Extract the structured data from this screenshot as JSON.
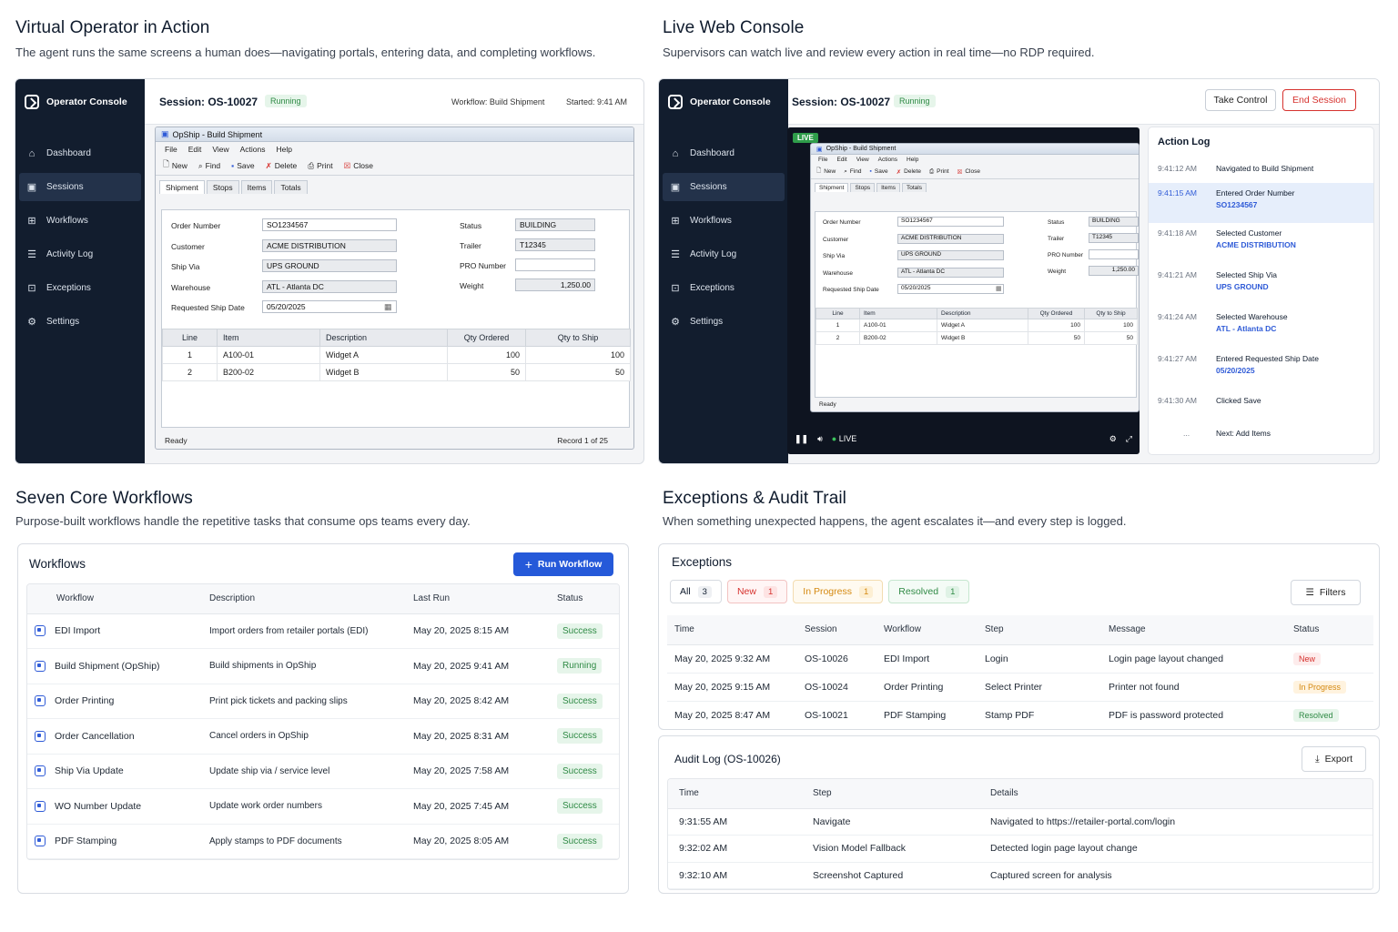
{
  "sections": {
    "operator": {
      "title": "Virtual Operator in Action",
      "subtitle": "The agent runs the same screens a human does—navigating portals, entering data, and completing workflows."
    },
    "console": {
      "title": "Live Web Console",
      "subtitle": "Supervisors can watch live and review every action in real time—no RDP required."
    },
    "workflows": {
      "title": "Seven Core Workflows",
      "subtitle": "Purpose-built workflows handle the repetitive tasks that consume ops teams every day."
    },
    "exceptions": {
      "title": "Exceptions & Audit Trail",
      "subtitle": "When something unexpected happens, the agent escalates it—and every step is logged."
    }
  },
  "sidebar": {
    "brand": "Operator Console",
    "items": [
      {
        "label": "Dashboard",
        "icon": "home-icon"
      },
      {
        "label": "Sessions",
        "icon": "session-icon"
      },
      {
        "label": "Workflows",
        "icon": "workflow-icon"
      },
      {
        "label": "Activity Log",
        "icon": "list-icon"
      },
      {
        "label": "Exceptions",
        "icon": "exception-icon"
      },
      {
        "label": "Settings",
        "icon": "gear-icon"
      }
    ]
  },
  "session": {
    "title": "Session: OS-10027",
    "status": "Running",
    "workflow": "Workflow: Build Shipment",
    "started": "Started: 9:41 AM",
    "take_control": "Take Control",
    "end_session": "End Session"
  },
  "opship": {
    "title": "OpShip - Build Shipment",
    "menu": [
      "File",
      "Edit",
      "View",
      "Actions",
      "Help"
    ],
    "tools": [
      "New",
      "Find",
      "Save",
      "Delete",
      "Print",
      "Close"
    ],
    "tabs": [
      "Shipment",
      "Stops",
      "Items",
      "Totals"
    ],
    "labels": {
      "order_number": "Order Number",
      "customer": "Customer",
      "ship_via": "Ship Via",
      "warehouse": "Warehouse",
      "requested": "Requested Ship Date",
      "status": "Status",
      "trailer": "Trailer",
      "pro": "PRO Number",
      "weight": "Weight"
    },
    "values": {
      "order_number": "SO1234567",
      "customer": "ACME DISTRIBUTION",
      "ship_via": "UPS GROUND",
      "warehouse": "ATL - Atlanta DC",
      "requested": "05/20/2025",
      "status": "BUILDING",
      "trailer": "T12345",
      "pro": "",
      "weight": "1,250.00"
    },
    "grid_headers": [
      "Line",
      "Item",
      "Description",
      "Qty Ordered",
      "Qty to Ship"
    ],
    "grid_rows": [
      [
        "1",
        "A100-01",
        "Widget A",
        "100",
        "100"
      ],
      [
        "2",
        "B200-02",
        "Widget B",
        "50",
        "50"
      ]
    ],
    "status_bar": "Ready",
    "record": "Record 1 of 25"
  },
  "live": {
    "badge": "LIVE",
    "player_label": "LIVE"
  },
  "action_log": {
    "title": "Action Log",
    "entries": [
      {
        "time": "9:41:12 AM",
        "action": "Navigated to Build Shipment",
        "detail": ""
      },
      {
        "time": "9:41:15 AM",
        "action": "Entered Order Number",
        "detail": "SO1234567"
      },
      {
        "time": "9:41:18 AM",
        "action": "Selected Customer",
        "detail": "ACME DISTRIBUTION"
      },
      {
        "time": "9:41:21 AM",
        "action": "Selected Ship Via",
        "detail": "UPS GROUND"
      },
      {
        "time": "9:41:24 AM",
        "action": "Selected Warehouse",
        "detail": "ATL - Atlanta DC"
      },
      {
        "time": "9:41:27 AM",
        "action": "Entered Requested Ship Date",
        "detail": "05/20/2025"
      },
      {
        "time": "9:41:30 AM",
        "action": "Clicked Save",
        "detail": ""
      },
      {
        "time": "...",
        "action": "Next: Add Items",
        "detail": ""
      }
    ]
  },
  "workflows_card": {
    "title": "Workflows",
    "run_button": "Run Workflow",
    "headers": [
      "Workflow",
      "Description",
      "Last Run",
      "Status"
    ],
    "rows": [
      {
        "name": "EDI Import",
        "desc": "Import orders from retailer portals (EDI)",
        "last": "May 20, 2025 8:15 AM",
        "status": "Success"
      },
      {
        "name": "Build Shipment (OpShip)",
        "desc": "Build shipments in OpShip",
        "last": "May 20, 2025 9:41 AM",
        "status": "Running"
      },
      {
        "name": "Order Printing",
        "desc": "Print pick tickets and packing slips",
        "last": "May 20, 2025 8:42 AM",
        "status": "Success"
      },
      {
        "name": "Order Cancellation",
        "desc": "Cancel orders in OpShip",
        "last": "May 20, 2025 8:31 AM",
        "status": "Success"
      },
      {
        "name": "Ship Via Update",
        "desc": "Update ship via / service level",
        "last": "May 20, 2025 7:58 AM",
        "status": "Success"
      },
      {
        "name": "WO Number Update",
        "desc": "Update work order numbers",
        "last": "May 20, 2025 7:45 AM",
        "status": "Success"
      },
      {
        "name": "PDF Stamping",
        "desc": "Apply stamps to PDF documents",
        "last": "May 20, 2025 8:05 AM",
        "status": "Success"
      }
    ]
  },
  "exceptions_card": {
    "title": "Exceptions",
    "filters": [
      {
        "label": "All",
        "count": "3"
      },
      {
        "label": "New",
        "count": "1"
      },
      {
        "label": "In Progress",
        "count": "1"
      },
      {
        "label": "Resolved",
        "count": "1"
      }
    ],
    "filters_button": "Filters",
    "headers": [
      "Time",
      "Session",
      "Workflow",
      "Step",
      "Message",
      "Status"
    ],
    "rows": [
      {
        "time": "May 20, 2025 9:32 AM",
        "session": "OS-10026",
        "workflow": "EDI Import",
        "step": "Login",
        "message": "Login page layout changed",
        "status": "New"
      },
      {
        "time": "May 20, 2025 9:15 AM",
        "session": "OS-10024",
        "workflow": "Order Printing",
        "step": "Select Printer",
        "message": "Printer not found",
        "status": "In Progress"
      },
      {
        "time": "May 20, 2025 8:47 AM",
        "session": "OS-10021",
        "workflow": "PDF Stamping",
        "step": "Stamp PDF",
        "message": "PDF is password protected",
        "status": "Resolved"
      }
    ]
  },
  "audit": {
    "title": "Audit Log (OS-10026)",
    "export": "Export",
    "headers": [
      "Time",
      "Step",
      "Details"
    ],
    "rows": [
      {
        "time": "9:31:55 AM",
        "step": "Navigate",
        "details": "Navigated to https://retailer-portal.com/login"
      },
      {
        "time": "9:32:02 AM",
        "step": "Vision Model Fallback",
        "details": "Detected login page layout change"
      },
      {
        "time": "9:32:10 AM",
        "step": "Screenshot Captured",
        "details": "Captured screen for analysis"
      }
    ]
  },
  "colors": {
    "navy": "#121d2e",
    "accent": "#2f5bd7",
    "success": "#2f8a45",
    "danger": "#d6322e",
    "warning": "#d58a12"
  }
}
